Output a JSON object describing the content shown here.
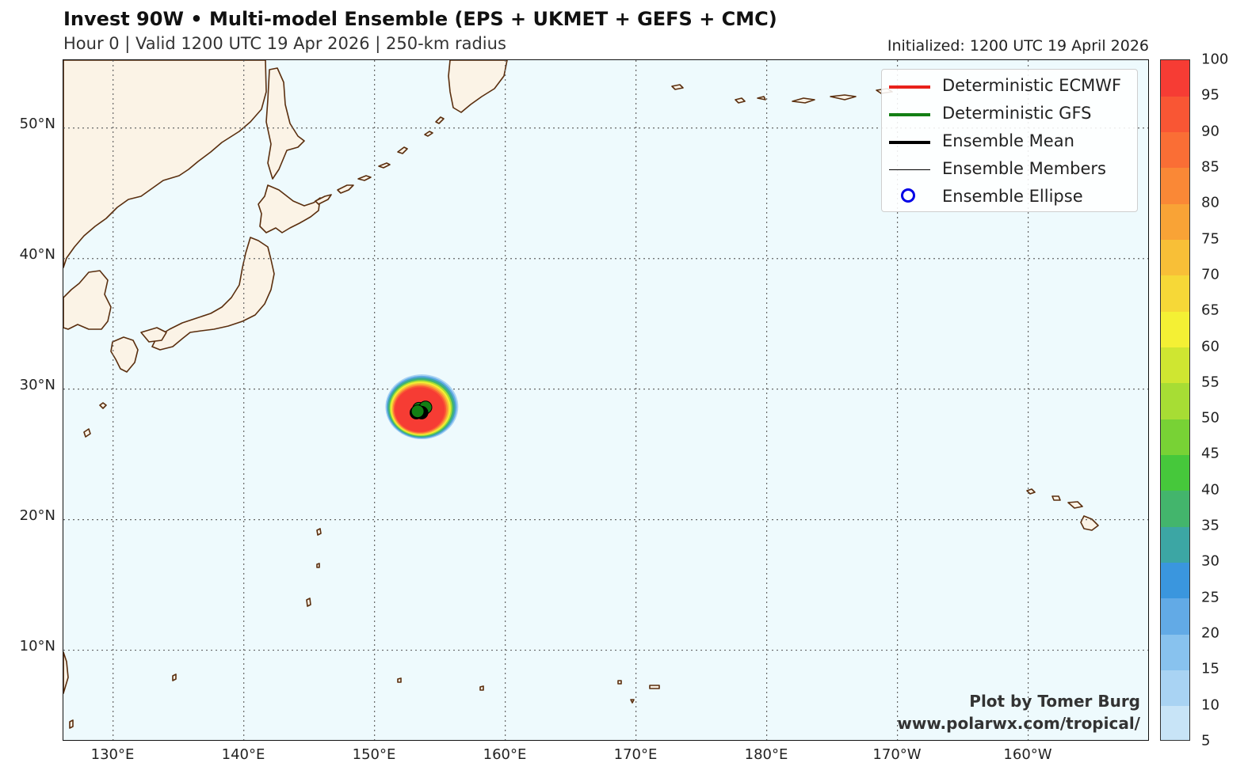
{
  "header": {
    "title": "Invest 90W • Multi-model Ensemble (EPS + UKMET + GEFS + CMC)",
    "subtitle": "Hour 0 | Valid 1200 UTC 19 Apr 2026 | 250-km radius",
    "initialized": "Initialized: 1200 UTC 19 April 2026"
  },
  "map": {
    "extent": {
      "lon_min": 126.2,
      "lon_max": 209.3,
      "lat_min": 3.0,
      "lat_max": 55.2
    },
    "lat_ticks": [
      {
        "value": 50,
        "label": "50°N"
      },
      {
        "value": 40,
        "label": "40°N"
      },
      {
        "value": 30,
        "label": "30°N"
      },
      {
        "value": 20,
        "label": "20°N"
      },
      {
        "value": 10,
        "label": "10°N"
      }
    ],
    "lon_ticks": [
      {
        "value": 130,
        "label": "130°E"
      },
      {
        "value": 140,
        "label": "140°E"
      },
      {
        "value": 150,
        "label": "150°E"
      },
      {
        "value": 160,
        "label": "160°E"
      },
      {
        "value": 170,
        "label": "170°E"
      },
      {
        "value": 180,
        "label": "180°E"
      },
      {
        "value": 190,
        "label": "170°W"
      },
      {
        "value": 200,
        "label": "160°W"
      }
    ],
    "gridlines": true,
    "colors": {
      "ocean": "#eefafd",
      "land": "#fbf3e6",
      "coast": "#5a2e0e",
      "grid": "#666666"
    },
    "storm": {
      "lon": 153.5,
      "lat": 28.4,
      "probability_radius_km": 250,
      "members_lon": [
        153.2,
        153.4,
        153.7,
        153.9,
        153.6,
        153.3
      ],
      "members_lat": [
        28.2,
        28.5,
        28.4,
        28.6,
        28.2,
        28.3
      ]
    }
  },
  "legend": {
    "placement": "top-right",
    "items": [
      {
        "label": "Deterministic ECMWF",
        "color": "#e8211b",
        "kind": "line-thick"
      },
      {
        "label": "Deterministic GFS",
        "color": "#137f14",
        "kind": "line-thick"
      },
      {
        "label": "Ensemble Mean",
        "color": "#000000",
        "kind": "line-thick"
      },
      {
        "label": "Ensemble Members",
        "color": "#000000",
        "kind": "line-thin"
      },
      {
        "label": "Ensemble Ellipse",
        "color": "#0000e6",
        "kind": "circle"
      }
    ]
  },
  "colorbar": {
    "levels": [
      5,
      10,
      15,
      20,
      25,
      30,
      35,
      40,
      45,
      50,
      55,
      60,
      65,
      70,
      75,
      80,
      85,
      90,
      95,
      100
    ],
    "colors": [
      "#c8e4f7",
      "#a9d3f3",
      "#88c2ee",
      "#62aae6",
      "#3a96de",
      "#3ca6a4",
      "#43b56c",
      "#46c83b",
      "#78d235",
      "#a7dd34",
      "#cfe631",
      "#f4f034",
      "#f6d837",
      "#f8bf37",
      "#f9a336",
      "#fa8836",
      "#fa6e35",
      "#f95634",
      "#f63c34"
    ]
  },
  "credit": {
    "line1": "Plot by Tomer Burg",
    "line2": "www.polarwx.com/tropical/"
  }
}
